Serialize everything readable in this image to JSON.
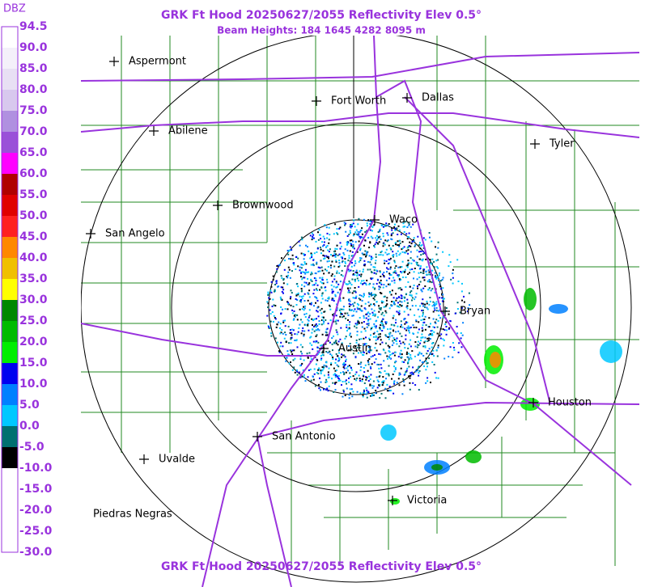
{
  "header": {
    "title": "GRK Ft Hood 20250627/2055 Reflectivity Elev 0.5°",
    "subtitle": "Beam Heights: 184 1645 4282 8095 m",
    "footer": "GRK Ft Hood 20250627/2055 Reflectivity Elev 0.5°"
  },
  "legend": {
    "unit": "DBZ",
    "labels": [
      "94.5",
      "90.0",
      "85.0",
      "80.0",
      "75.0",
      "70.0",
      "65.0",
      "60.0",
      "55.0",
      "50.0",
      "45.0",
      "40.0",
      "35.0",
      "30.0",
      "25.0",
      "20.0",
      "15.0",
      "10.0",
      "5.0",
      "0.0",
      "-5.0",
      "-10.0",
      "-15.0",
      "-20.0",
      "-25.0",
      "-30.0"
    ],
    "colors": [
      "#ffffff",
      "#f4f0fa",
      "#e8e0f4",
      "#d8c8ee",
      "#b090e0",
      "#9a50d8",
      "#ff00ff",
      "#b00000",
      "#e00000",
      "#ff2020",
      "#ff8800",
      "#f0c000",
      "#ffff00",
      "#008800",
      "#00bb00",
      "#00ee00",
      "#0000f0",
      "#0080ff",
      "#00c8ff",
      "#007070",
      "#000000",
      "#ffffff",
      "#ffffff",
      "#ffffff",
      "#ffffff"
    ]
  },
  "cities": [
    {
      "name": "Aspermont"
    },
    {
      "name": "Fort Worth"
    },
    {
      "name": "Dallas"
    },
    {
      "name": "Abilene"
    },
    {
      "name": "Tyler"
    },
    {
      "name": "Brownwood"
    },
    {
      "name": "Waco"
    },
    {
      "name": "San Angelo"
    },
    {
      "name": "Bryan"
    },
    {
      "name": "Austin"
    },
    {
      "name": "Houston"
    },
    {
      "name": "San Antonio"
    },
    {
      "name": "Uvalde"
    },
    {
      "name": "Victoria"
    },
    {
      "name": "Piedras Negras"
    }
  ]
}
